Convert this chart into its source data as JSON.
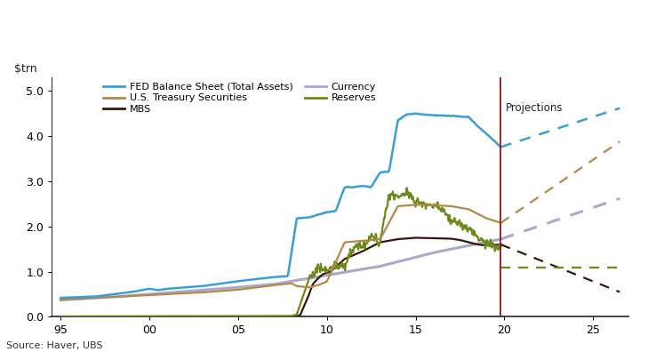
{
  "ylabel": "$trn",
  "source": "Source: Haver, UBS",
  "projection_label": "Projections",
  "xlim": [
    1994.5,
    2027
  ],
  "ylim": [
    0,
    5.3
  ],
  "yticks": [
    0.0,
    1.0,
    2.0,
    3.0,
    4.0,
    5.0
  ],
  "xticks": [
    1995,
    2000,
    2005,
    2010,
    2015,
    2020,
    2025
  ],
  "xticklabels": [
    "95",
    "00",
    "05",
    "10",
    "15",
    "20",
    "25"
  ],
  "projection_x": 2019.8,
  "colors": {
    "fed_total": "#3A9FD5",
    "treasury": "#B5884A",
    "mbs": "#3B1507",
    "currency": "#A8AACC",
    "reserves": "#6B8A1A"
  },
  "background": "#FFFFFF"
}
